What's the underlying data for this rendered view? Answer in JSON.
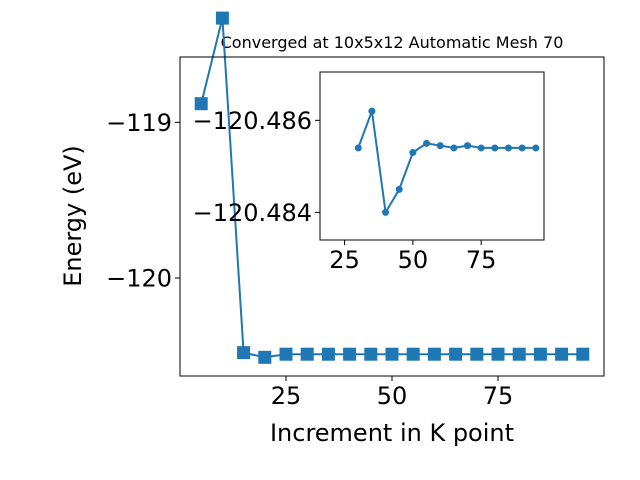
{
  "chart_data": [
    {
      "type": "line",
      "title": "Converged at 10x5x12 Automatic Mesh 70",
      "xlabel": "Increment in K point",
      "ylabel": "Energy (eV)",
      "xlim": [
        0,
        100
      ],
      "ylim": [
        -120.63,
        -118.58
      ],
      "xticks": [
        25,
        50,
        75
      ],
      "yticks": [
        -120,
        -119
      ],
      "yticklabels": [
        "−120",
        "−119"
      ],
      "grid": false,
      "marker": "square",
      "color": "#1f77b4",
      "series": [
        {
          "x": [
            5,
            10,
            15,
            20,
            25,
            30,
            35,
            40,
            45,
            50,
            55,
            60,
            65,
            70,
            75,
            80,
            85,
            90,
            95
          ],
          "y": [
            -118.88,
            -118.33,
            -120.48,
            -120.51,
            -120.49,
            -120.49,
            -120.49,
            -120.49,
            -120.49,
            -120.49,
            -120.49,
            -120.49,
            -120.49,
            -120.49,
            -120.49,
            -120.49,
            -120.49,
            -120.49,
            -120.49
          ]
        }
      ]
    },
    {
      "type": "line",
      "title": "",
      "xlabel": "",
      "ylabel": "",
      "xlim": [
        16,
        98
      ],
      "ylim": [
        -120.4834,
        -120.48705
      ],
      "xticks": [
        25,
        50,
        75
      ],
      "yticks": [
        -120.486,
        -120.484
      ],
      "yticklabels": [
        "−120.486",
        "−120.484"
      ],
      "grid": false,
      "marker": "circle",
      "color": "#1f77b4",
      "series": [
        {
          "x": [
            30,
            35,
            40,
            45,
            50,
            55,
            60,
            65,
            70,
            75,
            80,
            85,
            90,
            95
          ],
          "y": [
            -120.4854,
            -120.4862,
            -120.484,
            -120.4845,
            -120.4853,
            -120.4855,
            -120.48545,
            -120.4854,
            -120.48545,
            -120.4854,
            -120.4854,
            -120.4854,
            -120.4854,
            -120.4854
          ]
        }
      ]
    }
  ]
}
